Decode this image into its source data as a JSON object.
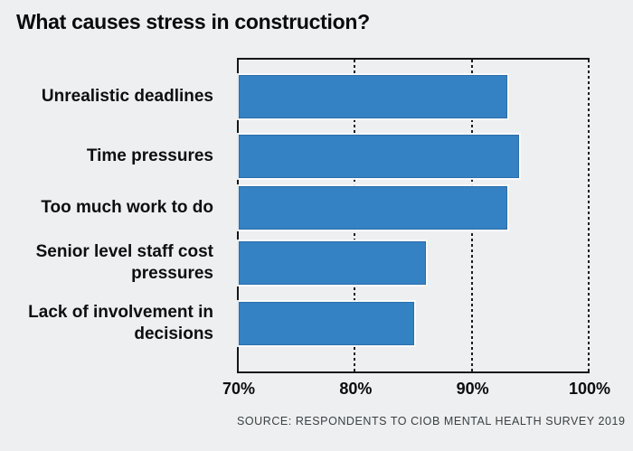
{
  "title": "What causes stress in construction?",
  "source": "SOURCE: RESPONDENTS TO CIOB MENTAL HEALTH SURVEY 2019",
  "colors": {
    "background": "#edeff1",
    "bar_fill": "#3481c3",
    "bar_border": "#2b6fab",
    "axis": "#161616",
    "text": "#0b0b0c",
    "source_text": "#3a3f42"
  },
  "chart_data": {
    "type": "bar",
    "orientation": "horizontal",
    "title": "What causes stress in construction?",
    "categories": [
      "Unrealistic deadlines",
      "Time pressures",
      "Too much work to do",
      "Senior level staff cost\npressures",
      "Lack of involvement in\ndecisions"
    ],
    "values": [
      93,
      94,
      93,
      86,
      85
    ],
    "unit": "%",
    "xlabel": "",
    "ylabel": "",
    "xlim": [
      70,
      100
    ],
    "x_ticks": [
      70,
      80,
      90,
      100
    ],
    "x_tick_labels": [
      "70%",
      "80%",
      "90%",
      "100%"
    ],
    "gridlines": "vertical dashed at 80, 90, 100; bars truncated at 70",
    "legend_position": "none",
    "bar_color": "#3481c3",
    "source": "SOURCE: RESPONDENTS TO CIOB MENTAL HEALTH SURVEY 2019"
  }
}
